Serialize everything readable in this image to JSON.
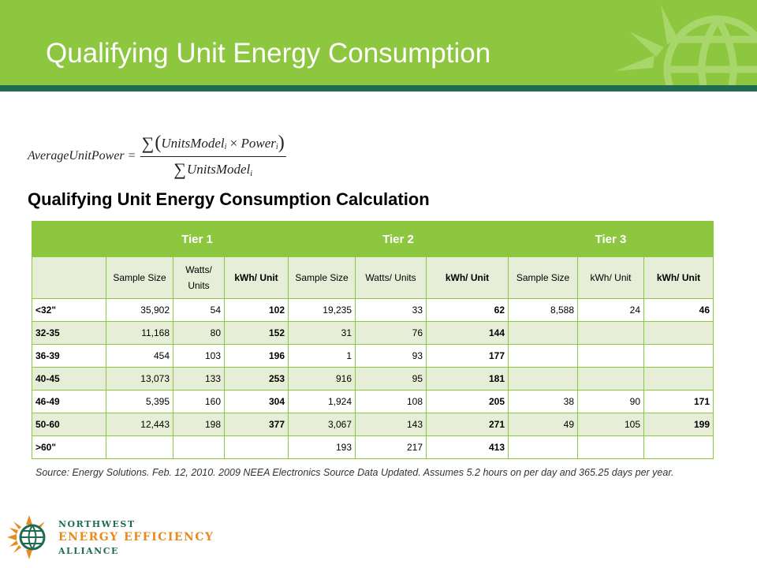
{
  "header": {
    "title": "Qualifying Unit Energy Consumption",
    "banner_color": "#8dc63f",
    "rule_color": "#1e6b52"
  },
  "formula": {
    "lhs": "AverageUnitPower",
    "equals": "=",
    "sigma": "∑",
    "num_open": "(",
    "num_units_model": "UnitsModel",
    "num_times": " × ",
    "num_power": "Power",
    "num_close": ")",
    "den_units_model": "UnitsModel",
    "index": "i"
  },
  "subtitle": "Qualifying Unit Energy Consumption Calculation",
  "table": {
    "tiers": [
      "Tier 1",
      "Tier 2",
      "Tier 3"
    ],
    "subheaders": [
      {
        "text": "Sample Size",
        "bold": false
      },
      {
        "text": "Watts/ Units",
        "bold": false
      },
      {
        "text": "kWh/ Unit",
        "bold": true
      },
      {
        "text": "Sample Size",
        "bold": false
      },
      {
        "text": "Watts/ Units",
        "bold": false
      },
      {
        "text": "kWh/ Unit",
        "bold": true
      },
      {
        "text": "Sample Size",
        "bold": false
      },
      {
        "text": "kWh/ Unit",
        "bold": false
      },
      {
        "text": "kWh/ Unit",
        "bold": true
      }
    ],
    "rows": [
      {
        "size": "<32\"",
        "cells": [
          "35,902",
          "54",
          "102",
          "19,235",
          "33",
          "62",
          "8,588",
          "24",
          "46"
        ]
      },
      {
        "size": "32-35",
        "cells": [
          "11,168",
          "80",
          "152",
          "31",
          "76",
          "144",
          "",
          "",
          ""
        ]
      },
      {
        "size": "36-39",
        "cells": [
          "454",
          "103",
          "196",
          "1",
          "93",
          "177",
          "",
          "",
          ""
        ]
      },
      {
        "size": "40-45",
        "cells": [
          "13,073",
          "133",
          "253",
          "916",
          "95",
          "181",
          "",
          "",
          ""
        ]
      },
      {
        "size": "46-49",
        "cells": [
          "5,395",
          "160",
          "304",
          "1,924",
          "108",
          "205",
          "38",
          "90",
          "171"
        ]
      },
      {
        "size": "50-60",
        "cells": [
          "12,443",
          "198",
          "377",
          "3,067",
          "143",
          "271",
          "49",
          "105",
          "199"
        ]
      },
      {
        "size": ">60\"",
        "cells": [
          "",
          "",
          "",
          "193",
          "217",
          "413",
          "",
          "",
          ""
        ]
      }
    ]
  },
  "source": "Source: Energy Solutions. Feb. 12, 2010. 2009 NEEA Electronics Source Data Updated. Assumes 5.2 hours on per day and 365.25 days per year.",
  "logo": {
    "line1": "NORTHWEST",
    "line2": "ENERGY EFFICIENCY",
    "line3": "ALLIANCE",
    "icon": "sun-globe-logo-icon"
  }
}
